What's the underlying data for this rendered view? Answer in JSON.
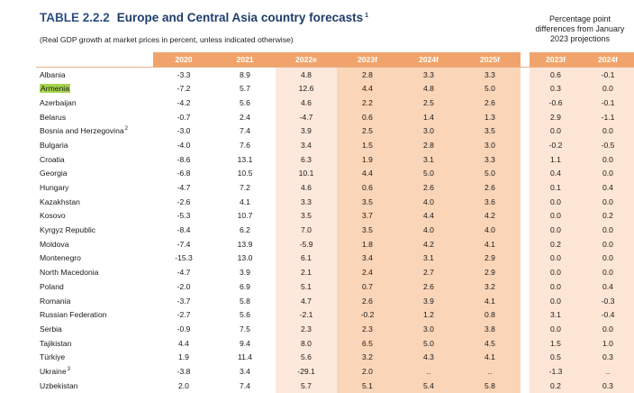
{
  "title": {
    "number": "TABLE 2.2.2",
    "text": "Europe and Central Asia country forecasts",
    "footnote": "1",
    "subtitle": "(Real GDP growth at market prices in percent, unless indicated otherwise)"
  },
  "diff_header": {
    "line1": "Percentage point",
    "line2": "differences from January",
    "line3": "2023 projections"
  },
  "columns": {
    "main": [
      "2020",
      "2021",
      "2022e",
      "2023f",
      "2024f",
      "2025f"
    ],
    "diff": [
      "2023f",
      "2024f"
    ]
  },
  "colors": {
    "title": "#1f3d6b",
    "header_fill": "#f0a46b",
    "estimate_fill": "#fde9dc",
    "forecast_fill": "#fbd5b8",
    "diff_fill": "#fde6d5",
    "highlight": "#a8d64f"
  },
  "rows": [
    {
      "name": "Albania",
      "fn": "",
      "v": [
        "-3.3",
        "8.9",
        "4.8",
        "2.8",
        "3.3",
        "3.3"
      ],
      "d": [
        "0.6",
        "-0.1"
      ]
    },
    {
      "name": "Armenia",
      "fn": "",
      "v": [
        "-7.2",
        "5.7",
        "12.6",
        "4.4",
        "4.8",
        "5.0"
      ],
      "d": [
        "0.3",
        "0.0"
      ]
    },
    {
      "name": "Azerbaijan",
      "fn": "",
      "v": [
        "-4.2",
        "5.6",
        "4.6",
        "2.2",
        "2.5",
        "2.6"
      ],
      "d": [
        "-0.6",
        "-0.1"
      ]
    },
    {
      "name": "Belarus",
      "fn": "",
      "v": [
        "-0.7",
        "2.4",
        "-4.7",
        "0.6",
        "1.4",
        "1.3"
      ],
      "d": [
        "2.9",
        "-1.1"
      ]
    },
    {
      "name": "Bosnia and Herzegovina",
      "fn": "2",
      "v": [
        "-3.0",
        "7.4",
        "3.9",
        "2.5",
        "3.0",
        "3.5"
      ],
      "d": [
        "0.0",
        "0.0"
      ]
    },
    {
      "name": "Bulgaria",
      "fn": "",
      "v": [
        "-4.0",
        "7.6",
        "3.4",
        "1.5",
        "2.8",
        "3.0"
      ],
      "d": [
        "-0.2",
        "-0.5"
      ]
    },
    {
      "name": "Croatia",
      "fn": "",
      "v": [
        "-8.6",
        "13.1",
        "6.3",
        "1.9",
        "3.1",
        "3.3"
      ],
      "d": [
        "1.1",
        "0.0"
      ]
    },
    {
      "name": "Georgia",
      "fn": "",
      "v": [
        "-6.8",
        "10.5",
        "10.1",
        "4.4",
        "5.0",
        "5.0"
      ],
      "d": [
        "0.4",
        "0.0"
      ]
    },
    {
      "name": "Hungary",
      "fn": "",
      "v": [
        "-4.7",
        "7.2",
        "4.6",
        "0.6",
        "2.6",
        "2.6"
      ],
      "d": [
        "0.1",
        "0.4"
      ]
    },
    {
      "name": "Kazakhstan",
      "fn": "",
      "v": [
        "-2.6",
        "4.1",
        "3.3",
        "3.5",
        "4.0",
        "3.6"
      ],
      "d": [
        "0.0",
        "0.0"
      ]
    },
    {
      "name": "Kosovo",
      "fn": "",
      "v": [
        "-5.3",
        "10.7",
        "3.5",
        "3.7",
        "4.4",
        "4.2"
      ],
      "d": [
        "0.0",
        "0.2"
      ]
    },
    {
      "name": "Kyrgyz Republic",
      "fn": "",
      "v": [
        "-8.4",
        "6.2",
        "7.0",
        "3.5",
        "4.0",
        "4.0"
      ],
      "d": [
        "0.0",
        "0.0"
      ]
    },
    {
      "name": "Moldova",
      "fn": "",
      "v": [
        "-7.4",
        "13.9",
        "-5.9",
        "1.8",
        "4.2",
        "4.1"
      ],
      "d": [
        "0.2",
        "0.0"
      ]
    },
    {
      "name": "Montenegro",
      "fn": "",
      "v": [
        "-15.3",
        "13.0",
        "6.1",
        "3.4",
        "3.1",
        "2.9"
      ],
      "d": [
        "0.0",
        "0.0"
      ]
    },
    {
      "name": "North Macedonia",
      "fn": "",
      "v": [
        "-4.7",
        "3.9",
        "2.1",
        "2.4",
        "2.7",
        "2.9"
      ],
      "d": [
        "0.0",
        "0.0"
      ]
    },
    {
      "name": "Poland",
      "fn": "",
      "v": [
        "-2.0",
        "6.9",
        "5.1",
        "0.7",
        "2.6",
        "3.2"
      ],
      "d": [
        "0.0",
        "0.4"
      ]
    },
    {
      "name": "Romania",
      "fn": "",
      "v": [
        "-3.7",
        "5.8",
        "4.7",
        "2.6",
        "3.9",
        "4.1"
      ],
      "d": [
        "0.0",
        "-0.3"
      ]
    },
    {
      "name": "Russian Federation",
      "fn": "",
      "v": [
        "-2.7",
        "5.6",
        "-2.1",
        "-0.2",
        "1.2",
        "0.8"
      ],
      "d": [
        "3.1",
        "-0.4"
      ]
    },
    {
      "name": "Serbia",
      "fn": "",
      "v": [
        "-0.9",
        "7.5",
        "2.3",
        "2.3",
        "3.0",
        "3.8"
      ],
      "d": [
        "0.0",
        "0.0"
      ]
    },
    {
      "name": "Tajikistan",
      "fn": "",
      "v": [
        "4.4",
        "9.4",
        "8.0",
        "6.5",
        "5.0",
        "4.5"
      ],
      "d": [
        "1.5",
        "1.0"
      ]
    },
    {
      "name": "Türkiye",
      "fn": "",
      "v": [
        "1.9",
        "11.4",
        "5.6",
        "3.2",
        "4.3",
        "4.1"
      ],
      "d": [
        "0.5",
        "0.3"
      ]
    },
    {
      "name": "Ukraine",
      "fn": "3",
      "v": [
        "-3.8",
        "3.4",
        "-29.1",
        "2.0",
        "..",
        ".."
      ],
      "d": [
        "-1.3",
        ".."
      ]
    },
    {
      "name": "Uzbekistan",
      "fn": "",
      "v": [
        "2.0",
        "7.4",
        "5.7",
        "5.1",
        "5.4",
        "5.8"
      ],
      "d": [
        "0.2",
        "0.3"
      ]
    }
  ]
}
